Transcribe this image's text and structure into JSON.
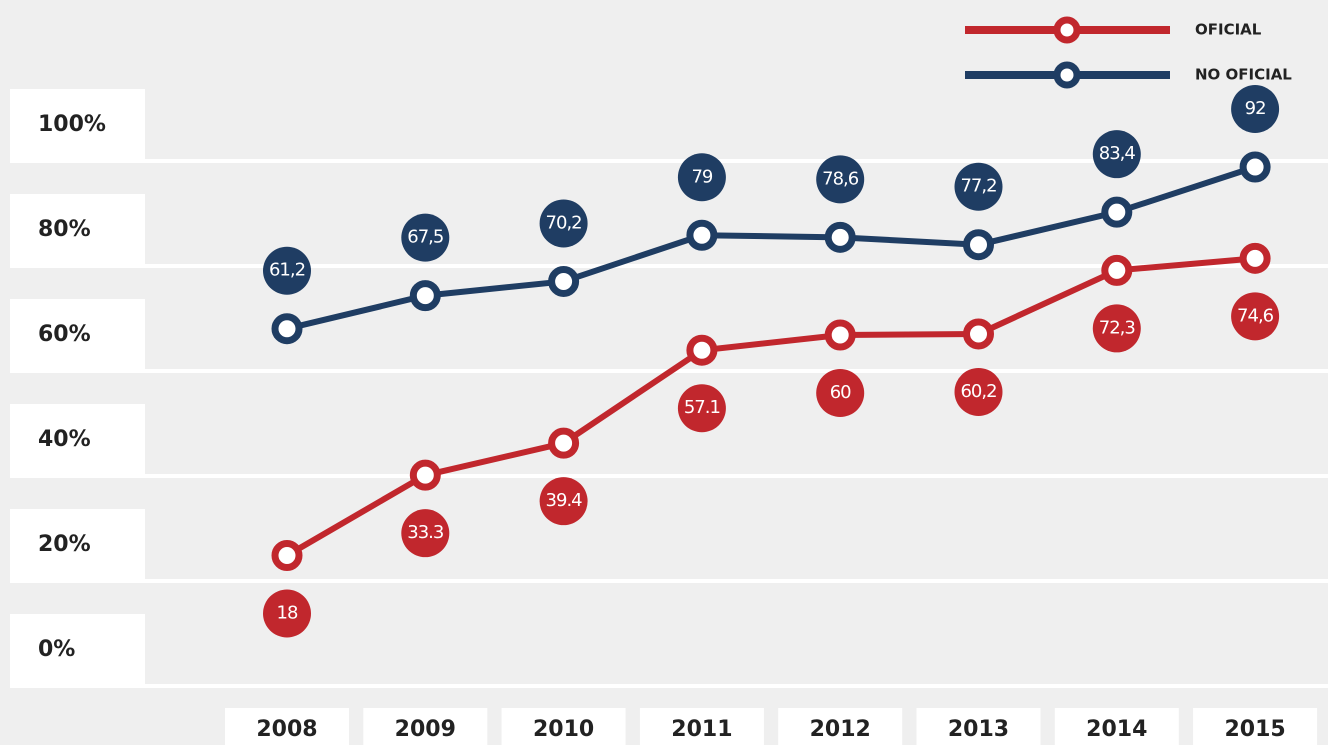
{
  "chart_data": {
    "type": "line",
    "categories": [
      "2008",
      "2009",
      "2010",
      "2011",
      "2012",
      "2013",
      "2014",
      "2015"
    ],
    "series": [
      {
        "name": "OFICIAL",
        "color": "#c1272d",
        "values": [
          18,
          33.3,
          39.4,
          57.1,
          60,
          60.2,
          72.3,
          74.6
        ],
        "value_labels": [
          "18",
          "33.3",
          "39.4",
          "57.1",
          "60",
          "60,2",
          "72,3",
          "74,6"
        ]
      },
      {
        "name": "NO OFICIAL",
        "color": "#1f3d63",
        "values": [
          61.2,
          67.5,
          70.2,
          79,
          78.6,
          77.2,
          83.4,
          92
        ],
        "value_labels": [
          "61,2",
          "67,5",
          "70,2",
          "79",
          "78,6",
          "77,2",
          "83,4",
          "92"
        ]
      }
    ],
    "ylim": [
      0,
      100
    ],
    "yticks": [
      {
        "value": 0,
        "label": "0%"
      },
      {
        "value": 20,
        "label": "20%"
      },
      {
        "value": 40,
        "label": "40%"
      },
      {
        "value": 60,
        "label": "60%"
      },
      {
        "value": 80,
        "label": "80%"
      },
      {
        "value": 100,
        "label": "100%"
      }
    ],
    "grid": true,
    "legend": "upper right"
  }
}
